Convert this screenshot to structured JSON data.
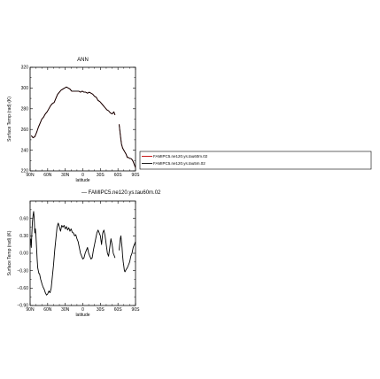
{
  "chart_data": [
    {
      "type": "line",
      "title": "ANN",
      "xlabel": "latitude",
      "ylabel": "Surface Temp (rad) (K)",
      "xlim": [
        90,
        -90
      ],
      "ylim": [
        220,
        320
      ],
      "xtick_values": [
        90,
        60,
        30,
        0,
        -30,
        -60,
        -90
      ],
      "xtick_labels": [
        "90N",
        "60N",
        "30N",
        "0",
        "30S",
        "60S",
        "90S"
      ],
      "ytick_values": [
        220,
        240,
        260,
        280,
        300,
        320
      ],
      "ytick_labels": [
        "220",
        "240",
        "260",
        "280",
        "300",
        "320"
      ],
      "series": [
        {
          "name": "FAMIPC5.ne120.ys.tau60m.02",
          "color": "#c00000",
          "segments": [
            {
              "x": [
                88,
                85,
                82,
                79,
                76,
                73,
                70,
                67,
                64,
                61,
                58,
                55,
                52,
                49,
                46,
                43,
                40,
                37,
                34,
                31,
                28,
                25,
                22,
                19,
                16,
                13,
                10,
                7,
                4,
                1,
                -2,
                -5,
                -8,
                -11,
                -14,
                -17,
                -20,
                -23,
                -26,
                -29,
                -32,
                -35,
                -38,
                -41,
                -44,
                -47,
                -50,
                -53,
                -55
              ],
              "y": [
                254,
                252,
                253,
                257,
                262,
                266,
                270,
                272,
                275,
                277,
                280,
                283,
                285,
                286,
                290,
                294,
                296,
                298,
                299,
                300,
                301,
                300,
                299,
                297,
                297,
                297,
                297,
                297,
                296,
                297,
                296,
                296,
                295,
                296,
                295,
                294,
                292,
                291,
                288,
                287,
                285,
                283,
                281,
                279,
                278,
                276,
                275,
                277,
                274
              ]
            },
            {
              "x": [
                -62,
                -64,
                -66,
                -68,
                -70,
                -72,
                -74,
                -76,
                -78,
                -80,
                -82,
                -84,
                -86,
                -88,
                -90
              ],
              "y": [
                265,
                255,
                246,
                242,
                240,
                238,
                236,
                233,
                233,
                232,
                232,
                231,
                229,
                226,
                223
              ]
            }
          ]
        },
        {
          "name": "FAMIPC5.ne120.ys.tau5m.02",
          "color": "#000000",
          "segments": [
            {
              "x": [
                88,
                85,
                82,
                79,
                76,
                73,
                70,
                67,
                64,
                61,
                58,
                55,
                52,
                49,
                46,
                43,
                40,
                37,
                34,
                31,
                28,
                25,
                22,
                19,
                16,
                13,
                10,
                7,
                4,
                1,
                -2,
                -5,
                -8,
                -11,
                -14,
                -17,
                -20,
                -23,
                -26,
                -29,
                -32,
                -35,
                -38,
                -41,
                -44,
                -47,
                -50,
                -53,
                -55
              ],
              "y": [
                254,
                252,
                253,
                257,
                262,
                266,
                270,
                272,
                275,
                277,
                280,
                283,
                285,
                286,
                290,
                294,
                296,
                298,
                299,
                300,
                301,
                300,
                299,
                297,
                297,
                297,
                297,
                297,
                296,
                297,
                296,
                296,
                295,
                296,
                295,
                294,
                292,
                291,
                288,
                287,
                285,
                283,
                281,
                279,
                278,
                276,
                275,
                277,
                274
              ]
            },
            {
              "x": [
                -62,
                -64,
                -66,
                -68,
                -70,
                -72,
                -74,
                -76,
                -78,
                -80,
                -82,
                -84,
                -86,
                -88,
                -90
              ],
              "y": [
                265,
                255,
                246,
                242,
                240,
                238,
                236,
                233,
                233,
                232,
                232,
                231,
                229,
                226,
                223
              ]
            }
          ]
        }
      ],
      "legend": {
        "placement": "right",
        "entries": [
          "FAMIPC5.ne120.ys.tau60m.02",
          "FAMIPC5.ne120.ys.tau5m.02"
        ]
      }
    },
    {
      "type": "line",
      "subtitle": "— FAMIPC5.ne120.ys.tau60m.02",
      "xlabel": "latitude",
      "ylabel": "Surface Temp (rad) (K)",
      "xlim": [
        90,
        -90
      ],
      "ylim": [
        -0.9,
        0.9
      ],
      "xtick_values": [
        90,
        60,
        30,
        0,
        -30,
        -60,
        -90
      ],
      "xtick_labels": [
        "90N",
        "60N",
        "30N",
        "0",
        "30S",
        "60S",
        "90S"
      ],
      "ytick_values": [
        -0.9,
        -0.6,
        -0.3,
        0.0,
        0.3,
        0.6
      ],
      "ytick_labels": [
        "−0.90",
        "−0.60",
        "−0.30",
        "0.00",
        "0.30",
        "0.60"
      ],
      "series": [
        {
          "color": "#000000",
          "segments": [
            {
              "x": [
                89,
                88,
                87,
                86,
                85,
                84,
                83,
                82,
                81,
                80,
                79,
                78,
                77,
                76,
                75,
                74,
                73,
                72,
                71,
                70,
                68,
                66,
                64,
                62,
                60,
                58,
                56,
                54,
                52,
                50,
                48,
                46,
                44,
                42,
                40,
                38,
                36,
                34,
                32,
                30,
                28,
                26,
                24,
                22,
                20,
                18,
                16,
                14,
                12,
                10,
                8,
                6,
                4,
                2,
                0,
                -2,
                -4,
                -6,
                -8,
                -10,
                -12,
                -14,
                -16,
                -18,
                -20,
                -22,
                -24,
                -26,
                -28,
                -30,
                -32,
                -34,
                -36,
                -38,
                -40,
                -42,
                -44,
                -46,
                -48,
                -50,
                -52,
                -54,
                -55
              ],
              "y": [
                0.25,
                0.1,
                0.35,
                0.55,
                0.65,
                0.72,
                0.6,
                0.35,
                0.42,
                0.3,
                0.1,
                -0.1,
                -0.25,
                -0.3,
                -0.35,
                -0.35,
                -0.4,
                -0.45,
                -0.48,
                -0.52,
                -0.58,
                -0.62,
                -0.68,
                -0.72,
                -0.7,
                -0.65,
                -0.68,
                -0.6,
                -0.4,
                -0.2,
                0.05,
                0.25,
                0.45,
                0.52,
                0.45,
                0.38,
                0.48,
                0.45,
                0.48,
                0.42,
                0.46,
                0.4,
                0.44,
                0.38,
                0.42,
                0.36,
                0.35,
                0.3,
                0.32,
                0.25,
                0.2,
                0.1,
                0.0,
                -0.05,
                -0.1,
                -0.08,
                0.0,
                0.05,
                0.1,
                0.0,
                -0.05,
                -0.1,
                -0.08,
                0.05,
                0.15,
                0.25,
                0.35,
                0.4,
                0.35,
                0.3,
                0.15,
                0.35,
                0.4,
                0.3,
                0.15,
                0.0,
                -0.05,
                0.1,
                0.25,
                0.15,
                0.0,
                -0.05,
                -0.08
              ]
            },
            {
              "x": [
                -62,
                -63,
                -64,
                -65,
                -66,
                -67,
                -68,
                -69,
                -70,
                -71,
                -72,
                -74,
                -76,
                -78,
                -80,
                -82,
                -84,
                -86,
                -88,
                -90
              ],
              "y": [
                0.05,
                0.15,
                0.25,
                0.3,
                0.2,
                0.1,
                -0.05,
                -0.15,
                -0.22,
                -0.3,
                -0.32,
                -0.28,
                -0.25,
                -0.2,
                -0.15,
                -0.05,
                0.0,
                0.1,
                0.15,
                0.2
              ]
            }
          ]
        }
      ]
    }
  ]
}
